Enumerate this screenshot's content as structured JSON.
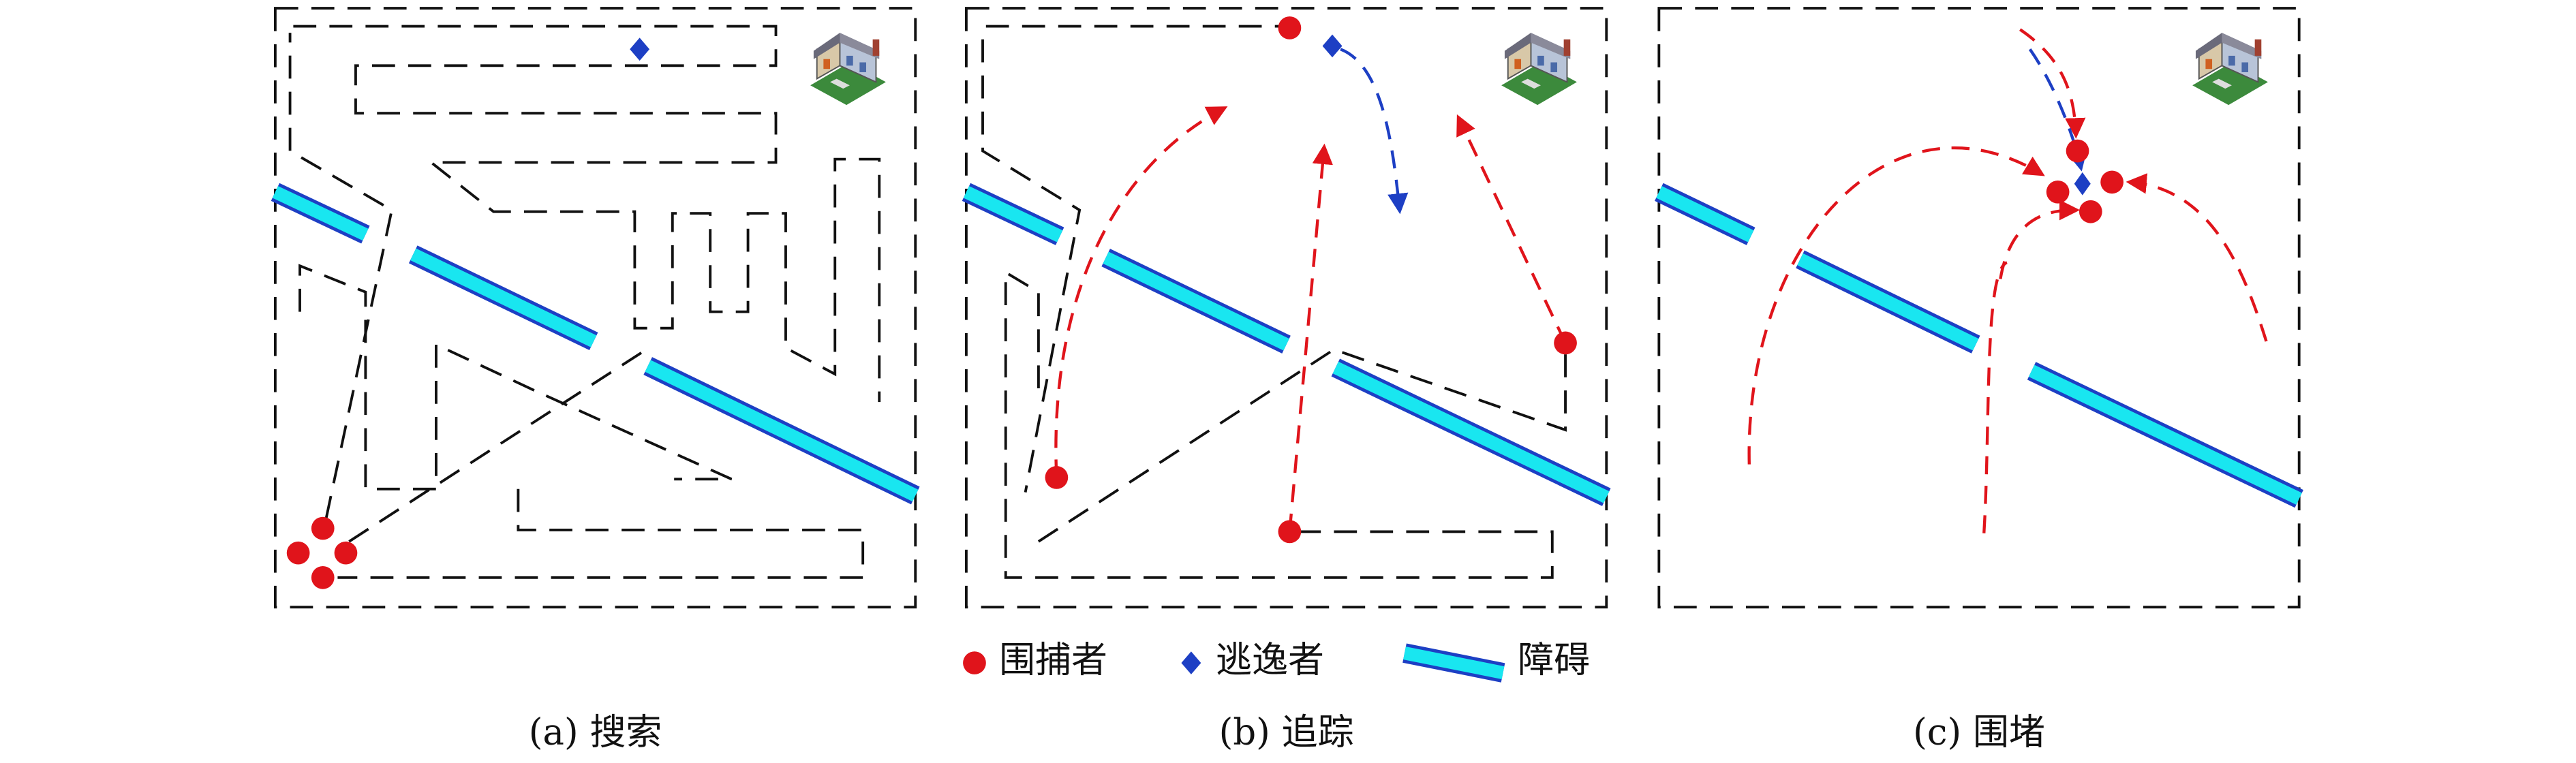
{
  "legend": {
    "items": [
      {
        "label": "围捕者"
      },
      {
        "label": "逃逸者"
      },
      {
        "label": "障碍"
      }
    ]
  },
  "panels": [
    {
      "caption": "(a) 搜索"
    },
    {
      "caption": "(b) 追踪"
    },
    {
      "caption": "(c) 围堵"
    }
  ]
}
